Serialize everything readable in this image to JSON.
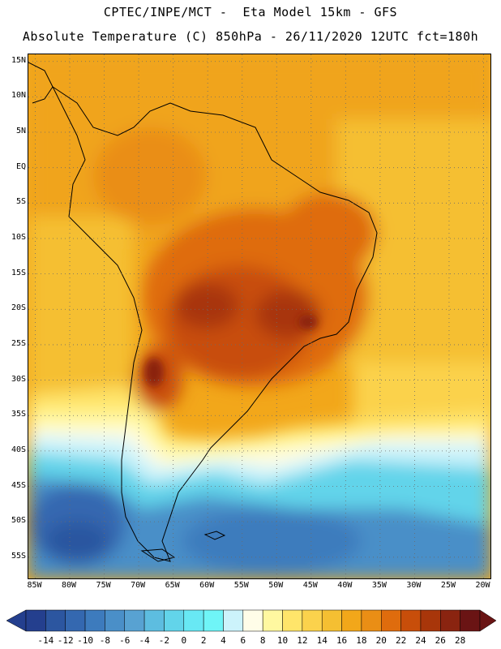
{
  "header": {
    "line1": "CPTEC/INPE/MCT -  Eta Model 15km - GFS",
    "line2": "Absolute Temperature (C) 850hPa - 26/11/2020 12UTC fct=180h"
  },
  "map": {
    "lat_labels": [
      "15N",
      "10N",
      "5N",
      "EQ",
      "5S",
      "10S",
      "15S",
      "20S",
      "25S",
      "30S",
      "35S",
      "40S",
      "45S",
      "50S",
      "55S"
    ],
    "lat_values": [
      15,
      10,
      5,
      0,
      -5,
      -10,
      -15,
      -20,
      -25,
      -30,
      -35,
      -40,
      -45,
      -50,
      -55
    ],
    "lon_labels": [
      "85W",
      "80W",
      "75W",
      "70W",
      "65W",
      "60W",
      "55W",
      "50W",
      "45W",
      "40W",
      "35W",
      "30W",
      "25W",
      "20W"
    ],
    "lon_values": [
      -85,
      -80,
      -75,
      -70,
      -65,
      -60,
      -55,
      -50,
      -45,
      -40,
      -35,
      -30,
      -25,
      -20
    ],
    "lat_range": [
      -58,
      16
    ],
    "lon_range": [
      -86,
      -19
    ]
  },
  "colorbar": {
    "labels": [
      "-14",
      "-12",
      "-10",
      "-8",
      "-6",
      "-4",
      "-2",
      "0",
      "2",
      "4",
      "6",
      "8",
      "10",
      "12",
      "14",
      "16",
      "18",
      "20",
      "22",
      "24",
      "26",
      "28"
    ],
    "colors": [
      "#243f8e",
      "#2c56a0",
      "#3468b0",
      "#3d7bbd",
      "#4a8fc8",
      "#58a2d2",
      "#5dbde0",
      "#62d4ea",
      "#68e8f4",
      "#6ff5f7",
      "#ccf3fb",
      "#fffde8",
      "#fff8a0",
      "#ffe56a",
      "#fbd24c",
      "#f5bf32",
      "#f2a71a",
      "#ea8e15",
      "#df6c0d",
      "#c84e0a",
      "#a8360a",
      "#8a2410",
      "#6a1414"
    ],
    "under_color": "#243f8e",
    "over_color": "#6a1414"
  }
}
